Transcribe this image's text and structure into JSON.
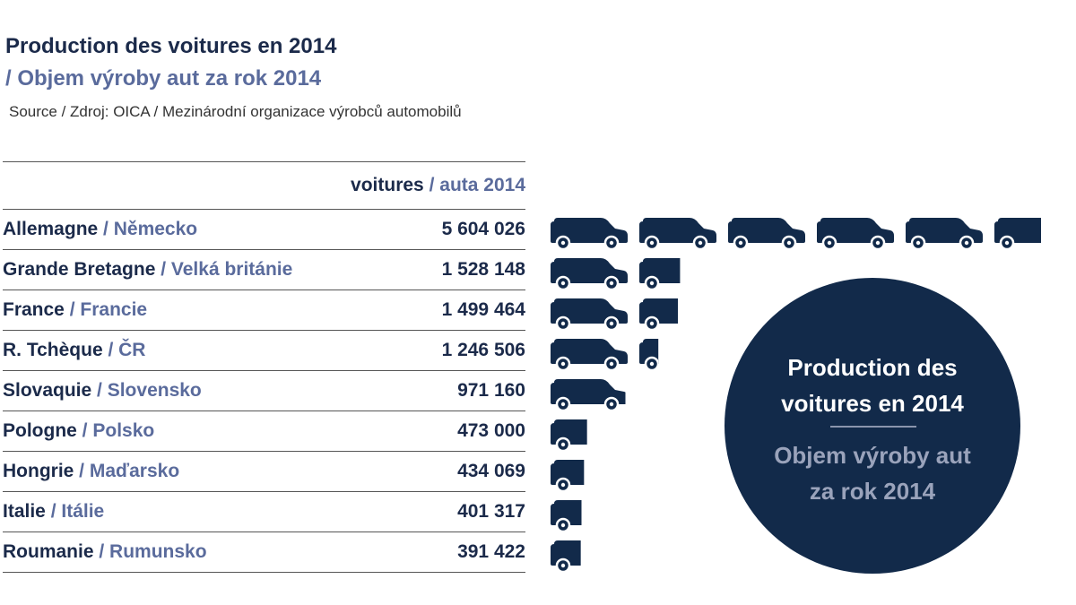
{
  "header": {
    "title": "Production des voitures en 2014",
    "subtitle": "/ Objem výroby aut za rok 2014",
    "source": "Source / Zdroj: OICA / Mezinárodní organizace výrobců automobilů"
  },
  "table": {
    "column_label_fr": "voitures",
    "column_sep": " / ",
    "column_label_cz": "auta 2014"
  },
  "chart_data": {
    "type": "bar",
    "title": "Production des voitures en 2014",
    "subtitle": "/ Objem výroby aut za rok 2014",
    "value_label": "voitures / auta 2014",
    "unit_per_icon": 1000000,
    "categories": [
      {
        "fr": "Allemagne",
        "cz": "Německo"
      },
      {
        "fr": "Grande Bretagne",
        "cz": "Velká británie"
      },
      {
        "fr": "France",
        "cz": "Francie"
      },
      {
        "fr": "R. Tchèque",
        "cz": "ČR"
      },
      {
        "fr": "Slovaquie",
        "cz": "Slovensko"
      },
      {
        "fr": "Pologne",
        "cz": "Polsko"
      },
      {
        "fr": "Hongrie",
        "cz": "Maďarsko"
      },
      {
        "fr": "Italie",
        "cz": "Itálie"
      },
      {
        "fr": "Roumanie",
        "cz": "Rumunsko"
      }
    ],
    "values": [
      5604026,
      1528148,
      1499464,
      1246506,
      971160,
      473000,
      434069,
      401317,
      391422
    ],
    "value_labels": [
      "5 604 026",
      "1 528 148",
      "1 499 464",
      "1 246 506",
      "971 160",
      "473 000",
      "434 069",
      "401 317",
      "391 422"
    ]
  },
  "badge": {
    "line1": "Production des",
    "line2": "voitures en 2014",
    "line3": "Objem výroby aut",
    "line4": "za rok 2014"
  },
  "colors": {
    "navy": "#122a4a",
    "slate": "#5a6b9c"
  }
}
